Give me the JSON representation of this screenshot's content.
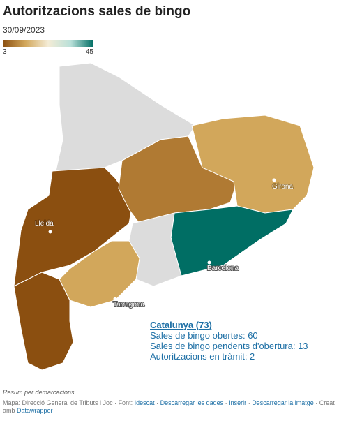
{
  "header": {
    "title": "Autoritzacions sales de bingo",
    "date": "30/09/2023"
  },
  "legend": {
    "min": "3",
    "max": "45"
  },
  "cities": [
    "Lleida",
    "Girona",
    "Barcelona",
    "Tarragona"
  ],
  "info": {
    "title": "Catalunya (73)",
    "lines": [
      "Sales de bingo obertes: 60",
      "Sales de bingo pendents d'obertura: 13",
      "Autoritzacions en tràmit: 2"
    ]
  },
  "footer": {
    "note": "Resum per demarcacions",
    "credit": "Mapa: Direcció General de Tributs i Joc · Font:",
    "links": [
      "Idescat",
      "Descarregar les dades",
      "Inserir",
      "Descarregar la imatge"
    ],
    "made": "· Creat amb",
    "tool": "Datawrapper"
  }
}
